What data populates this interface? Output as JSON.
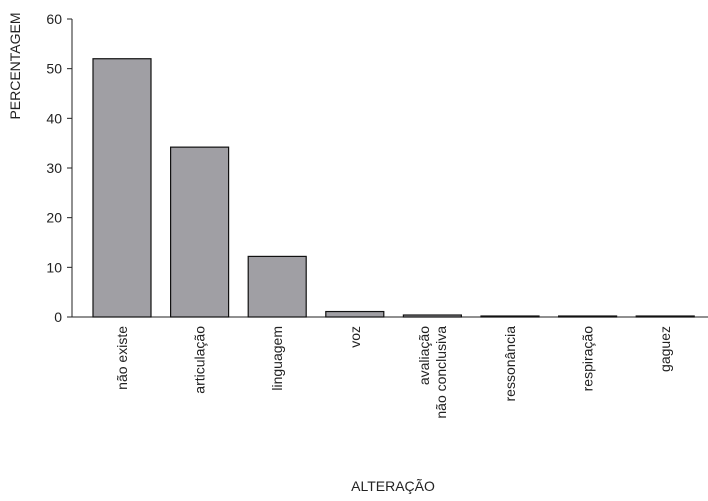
{
  "chart_data": {
    "type": "bar",
    "title": "",
    "xlabel": "ALTERAÇÃO",
    "ylabel": "PERCENTAGEM",
    "ylim": [
      0,
      60
    ],
    "yticks": [
      0,
      10,
      20,
      30,
      40,
      50,
      60
    ],
    "categories": [
      [
        "não existe"
      ],
      [
        "articulação"
      ],
      [
        "linguagem"
      ],
      [
        "voz"
      ],
      [
        "avaliação",
        "não conclusiva"
      ],
      [
        "ressonância"
      ],
      [
        "respiração"
      ],
      [
        "gaguez"
      ]
    ],
    "values": [
      52,
      34.2,
      12.2,
      1.1,
      0.4,
      0.2,
      0.2,
      0.2
    ],
    "bar_color": "#a09fa4",
    "grid": false,
    "legend": "none"
  }
}
